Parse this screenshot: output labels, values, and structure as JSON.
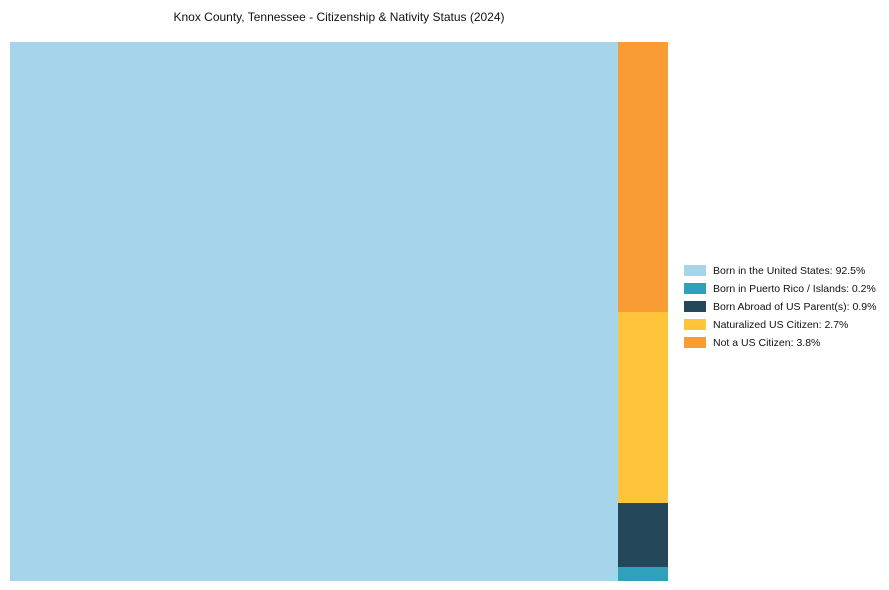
{
  "title": "Knox County, Tennessee - Citizenship & Nativity Status (2024)",
  "chart_data": {
    "type": "treemap",
    "title": "Knox County, Tennessee - Citizenship & Nativity Status (2024)",
    "categories": [
      "Born in the United States",
      "Born in Puerto Rico / Islands",
      "Born Abroad of US Parent(s)",
      "Naturalized US Citizen",
      "Not a US Citizen"
    ],
    "values": [
      92.5,
      0.2,
      0.9,
      2.7,
      3.8
    ],
    "unit": "%",
    "colors": [
      "#A6D4EA",
      "#2FA1BA",
      "#24475A",
      "#FFC43A",
      "#F99C33"
    ],
    "column_order": [
      4,
      3,
      2,
      1
    ],
    "legend_position": "right",
    "grid": false,
    "layout": "largest category fills a full-height left block; remaining categories are stacked in a narrow right column with the largest at the top"
  },
  "legend": {
    "items": [
      {
        "label": "Born in the United States: 92.5%",
        "color": "#A6D4EA"
      },
      {
        "label": "Born in Puerto Rico / Islands: 0.2%",
        "color": "#2FA1BA"
      },
      {
        "label": "Born Abroad of US Parent(s): 0.9%",
        "color": "#24475A"
      },
      {
        "label": "Naturalized US Citizen: 2.7%",
        "color": "#FFC43A"
      },
      {
        "label": "Not a US Citizen: 3.8%",
        "color": "#F99C33"
      }
    ]
  }
}
